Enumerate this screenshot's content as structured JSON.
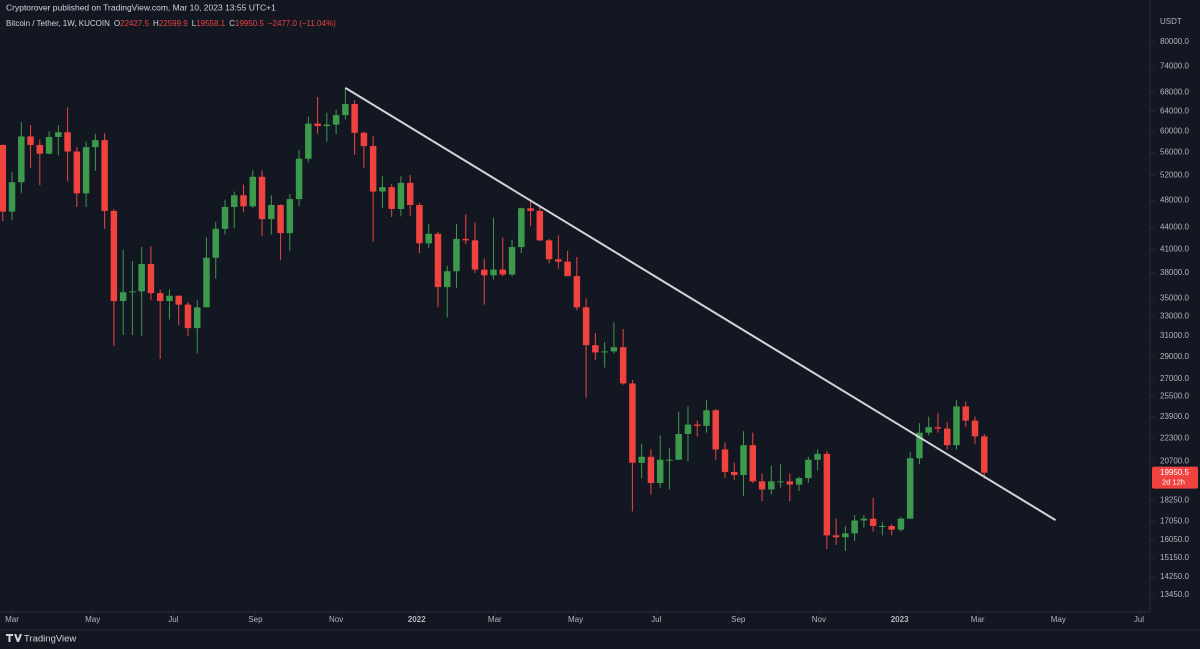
{
  "header": "Cryptorover published on TradingView.com, Mar 10, 2023 13:55 UTC+1",
  "brand": "TradingView",
  "chart_data": {
    "type": "candlestick",
    "title": "Bitcoin / Tether, 1W, KUCOIN",
    "ohlc_prefixes": [
      "O",
      "H",
      "L",
      "C"
    ],
    "change_label": "−2477.0 (−11.04%)",
    "currency": "USDT",
    "countdown": "2d 12h",
    "up_color": "#3d9a4c",
    "down_color": "#f0433f",
    "log_scale": true,
    "grid": false,
    "open": [
      57400,
      46300,
      50900,
      59000,
      57400,
      55800,
      58900,
      59800,
      56200,
      49100,
      57000,
      58300,
      46400,
      34700,
      35700,
      35800,
      39100,
      35600,
      34700,
      35300,
      34300,
      31800,
      34000,
      39900,
      43800,
      47000,
      48800,
      47100,
      51800,
      45200,
      47300,
      43200,
      48200,
      54900,
      61500,
      61000,
      61300,
      63200,
      65500,
      59700,
      57200,
      49400,
      50100,
      46700,
      50800,
      47300,
      41800,
      43100,
      36300,
      38200,
      42400,
      42200,
      38400,
      37700,
      38400,
      37800,
      41300,
      46800,
      46400,
      42200,
      39700,
      39400,
      37600,
      34000,
      30100,
      29400,
      29500,
      29900,
      26600,
      20600,
      21000,
      19300,
      20800,
      20800,
      22600,
      23300,
      23200,
      24400,
      21500,
      20000,
      19800,
      21800,
      19400,
      18900,
      19400,
      19400,
      19200,
      19600,
      20800,
      21200,
      16300,
      16200,
      16400,
      17100,
      17200,
      16800,
      16800,
      16600,
      17200,
      20900,
      22700,
      23100,
      23000,
      21800,
      24700,
      23600,
      22427.5
    ],
    "high": [
      57500,
      52600,
      61800,
      61200,
      58400,
      60000,
      61200,
      64800,
      57000,
      58000,
      59500,
      59600,
      46700,
      40900,
      39500,
      41300,
      41400,
      36000,
      36000,
      35300,
      34600,
      34800,
      42600,
      44800,
      48100,
      49400,
      50500,
      52900,
      52900,
      48800,
      47400,
      49000,
      56500,
      62900,
      67000,
      63700,
      64300,
      69000,
      66300,
      59900,
      59100,
      51900,
      50600,
      51900,
      52100,
      47600,
      44500,
      43400,
      38900,
      44500,
      45900,
      44700,
      39800,
      45400,
      42600,
      42300,
      46900,
      48200,
      47200,
      42400,
      42900,
      40800,
      40000,
      35000,
      31300,
      30400,
      32400,
      31700,
      26900,
      21900,
      21500,
      22500,
      21600,
      24300,
      24700,
      23600,
      25200,
      24500,
      22000,
      20600,
      22800,
      22700,
      19900,
      20400,
      20500,
      19900,
      19700,
      21000,
      21500,
      21400,
      17200,
      16800,
      17400,
      17400,
      18400,
      17000,
      16900,
      17300,
      21300,
      23400,
      23900,
      24200,
      23500,
      25200,
      25100,
      23900,
      22599.9
    ],
    "low": [
      44900,
      45000,
      49200,
      53300,
      50400,
      55700,
      55500,
      51000,
      47000,
      47000,
      52800,
      43800,
      30000,
      31100,
      31100,
      31000,
      34800,
      28800,
      32700,
      32100,
      31000,
      29300,
      34000,
      37300,
      43000,
      43900,
      46200,
      46800,
      42800,
      43000,
      39600,
      40800,
      47100,
      54300,
      59500,
      58000,
      59400,
      62300,
      55600,
      53300,
      42000,
      46800,
      45500,
      45600,
      45700,
      40500,
      41200,
      34000,
      32900,
      36200,
      41700,
      38000,
      34300,
      37200,
      37600,
      37600,
      40500,
      44200,
      42100,
      39200,
      38500,
      37600,
      33700,
      25400,
      28700,
      28000,
      29300,
      26500,
      17600,
      19600,
      18600,
      19000,
      18900,
      20800,
      20700,
      22400,
      22700,
      20800,
      19600,
      19500,
      18500,
      19300,
      18200,
      18600,
      19000,
      18200,
      18800,
      19300,
      20100,
      15600,
      15800,
      15500,
      16000,
      16700,
      16500,
      16300,
      16300,
      16500,
      17200,
      20500,
      22500,
      22700,
      21500,
      21500,
      23100,
      21900,
      19558.1
    ],
    "close": [
      46300,
      50900,
      59000,
      57400,
      55800,
      58900,
      59800,
      56200,
      49100,
      57000,
      58300,
      46400,
      34700,
      35700,
      35800,
      39100,
      35600,
      34700,
      35300,
      34300,
      31800,
      34000,
      39900,
      43800,
      47000,
      48800,
      47100,
      51800,
      45200,
      47300,
      43200,
      48200,
      54900,
      61500,
      61000,
      61300,
      63200,
      65500,
      59700,
      57200,
      49400,
      50100,
      46700,
      50800,
      47300,
      41800,
      43100,
      36300,
      38200,
      42400,
      42200,
      38400,
      37700,
      38400,
      37800,
      41300,
      46800,
      46400,
      42200,
      39700,
      39400,
      37600,
      34000,
      30100,
      29400,
      29500,
      29900,
      26600,
      20600,
      21000,
      19300,
      20800,
      20800,
      22600,
      23300,
      23200,
      24400,
      21500,
      20000,
      19800,
      21800,
      19400,
      18900,
      19400,
      19400,
      19200,
      19600,
      20800,
      21200,
      16300,
      16200,
      16400,
      17100,
      17200,
      16800,
      16800,
      16600,
      17200,
      20900,
      22700,
      23100,
      23000,
      21800,
      24700,
      23600,
      22427.5,
      19950.5
    ],
    "trendline": {
      "x": [
        37,
        113.7
      ],
      "y": [
        69000,
        17120
      ],
      "color": "#d1d4dc"
    },
    "xlim": [
      -0.3,
      123.9
    ],
    "xticks": [
      {
        "value": 1,
        "label": "Mar"
      },
      {
        "value": 9.71,
        "label": "May"
      },
      {
        "value": 18.43,
        "label": "Jul"
      },
      {
        "value": 27.29,
        "label": "Sep"
      },
      {
        "value": 36,
        "label": "Nov"
      },
      {
        "value": 44.71,
        "label": "2022"
      },
      {
        "value": 53.14,
        "label": "Mar"
      },
      {
        "value": 61.86,
        "label": "May"
      },
      {
        "value": 70.57,
        "label": "Jul"
      },
      {
        "value": 79.43,
        "label": "Sep"
      },
      {
        "value": 88.14,
        "label": "Nov"
      },
      {
        "value": 96.86,
        "label": "2023"
      },
      {
        "value": 105.29,
        "label": "Mar"
      },
      {
        "value": 114,
        "label": "May"
      },
      {
        "value": 122.71,
        "label": "Jul"
      }
    ],
    "ylim": [
      12730,
      88700
    ],
    "yticks": [
      {
        "value": 80000,
        "label": "80000.0"
      },
      {
        "value": 74000,
        "label": "74000.0"
      },
      {
        "value": 68000,
        "label": "68000.0"
      },
      {
        "value": 64000,
        "label": "64000.0"
      },
      {
        "value": 60000,
        "label": "60000.0"
      },
      {
        "value": 56000,
        "label": "56000.0"
      },
      {
        "value": 52000,
        "label": "52000.0"
      },
      {
        "value": 48000,
        "label": "48000.0"
      },
      {
        "value": 44000,
        "label": "44000.0"
      },
      {
        "value": 41000,
        "label": "41000.0"
      },
      {
        "value": 38000,
        "label": "38000.0"
      },
      {
        "value": 35000,
        "label": "35000.0"
      },
      {
        "value": 33000,
        "label": "33000.0"
      },
      {
        "value": 31000,
        "label": "31000.0"
      },
      {
        "value": 29000,
        "label": "29000.0"
      },
      {
        "value": 27000,
        "label": "27000.0"
      },
      {
        "value": 25500,
        "label": "25500.0"
      },
      {
        "value": 23900,
        "label": "23900.0"
      },
      {
        "value": 22300,
        "label": "22300.0"
      },
      {
        "value": 20700,
        "label": "20700.0"
      },
      {
        "value": 18250,
        "label": "18250.0"
      },
      {
        "value": 17050,
        "label": "17050.0"
      },
      {
        "value": 16050,
        "label": "16050.0"
      },
      {
        "value": 15150,
        "label": "15150.0"
      },
      {
        "value": 14250,
        "label": "14250.0"
      },
      {
        "value": 13450,
        "label": "13450.0"
      }
    ]
  }
}
